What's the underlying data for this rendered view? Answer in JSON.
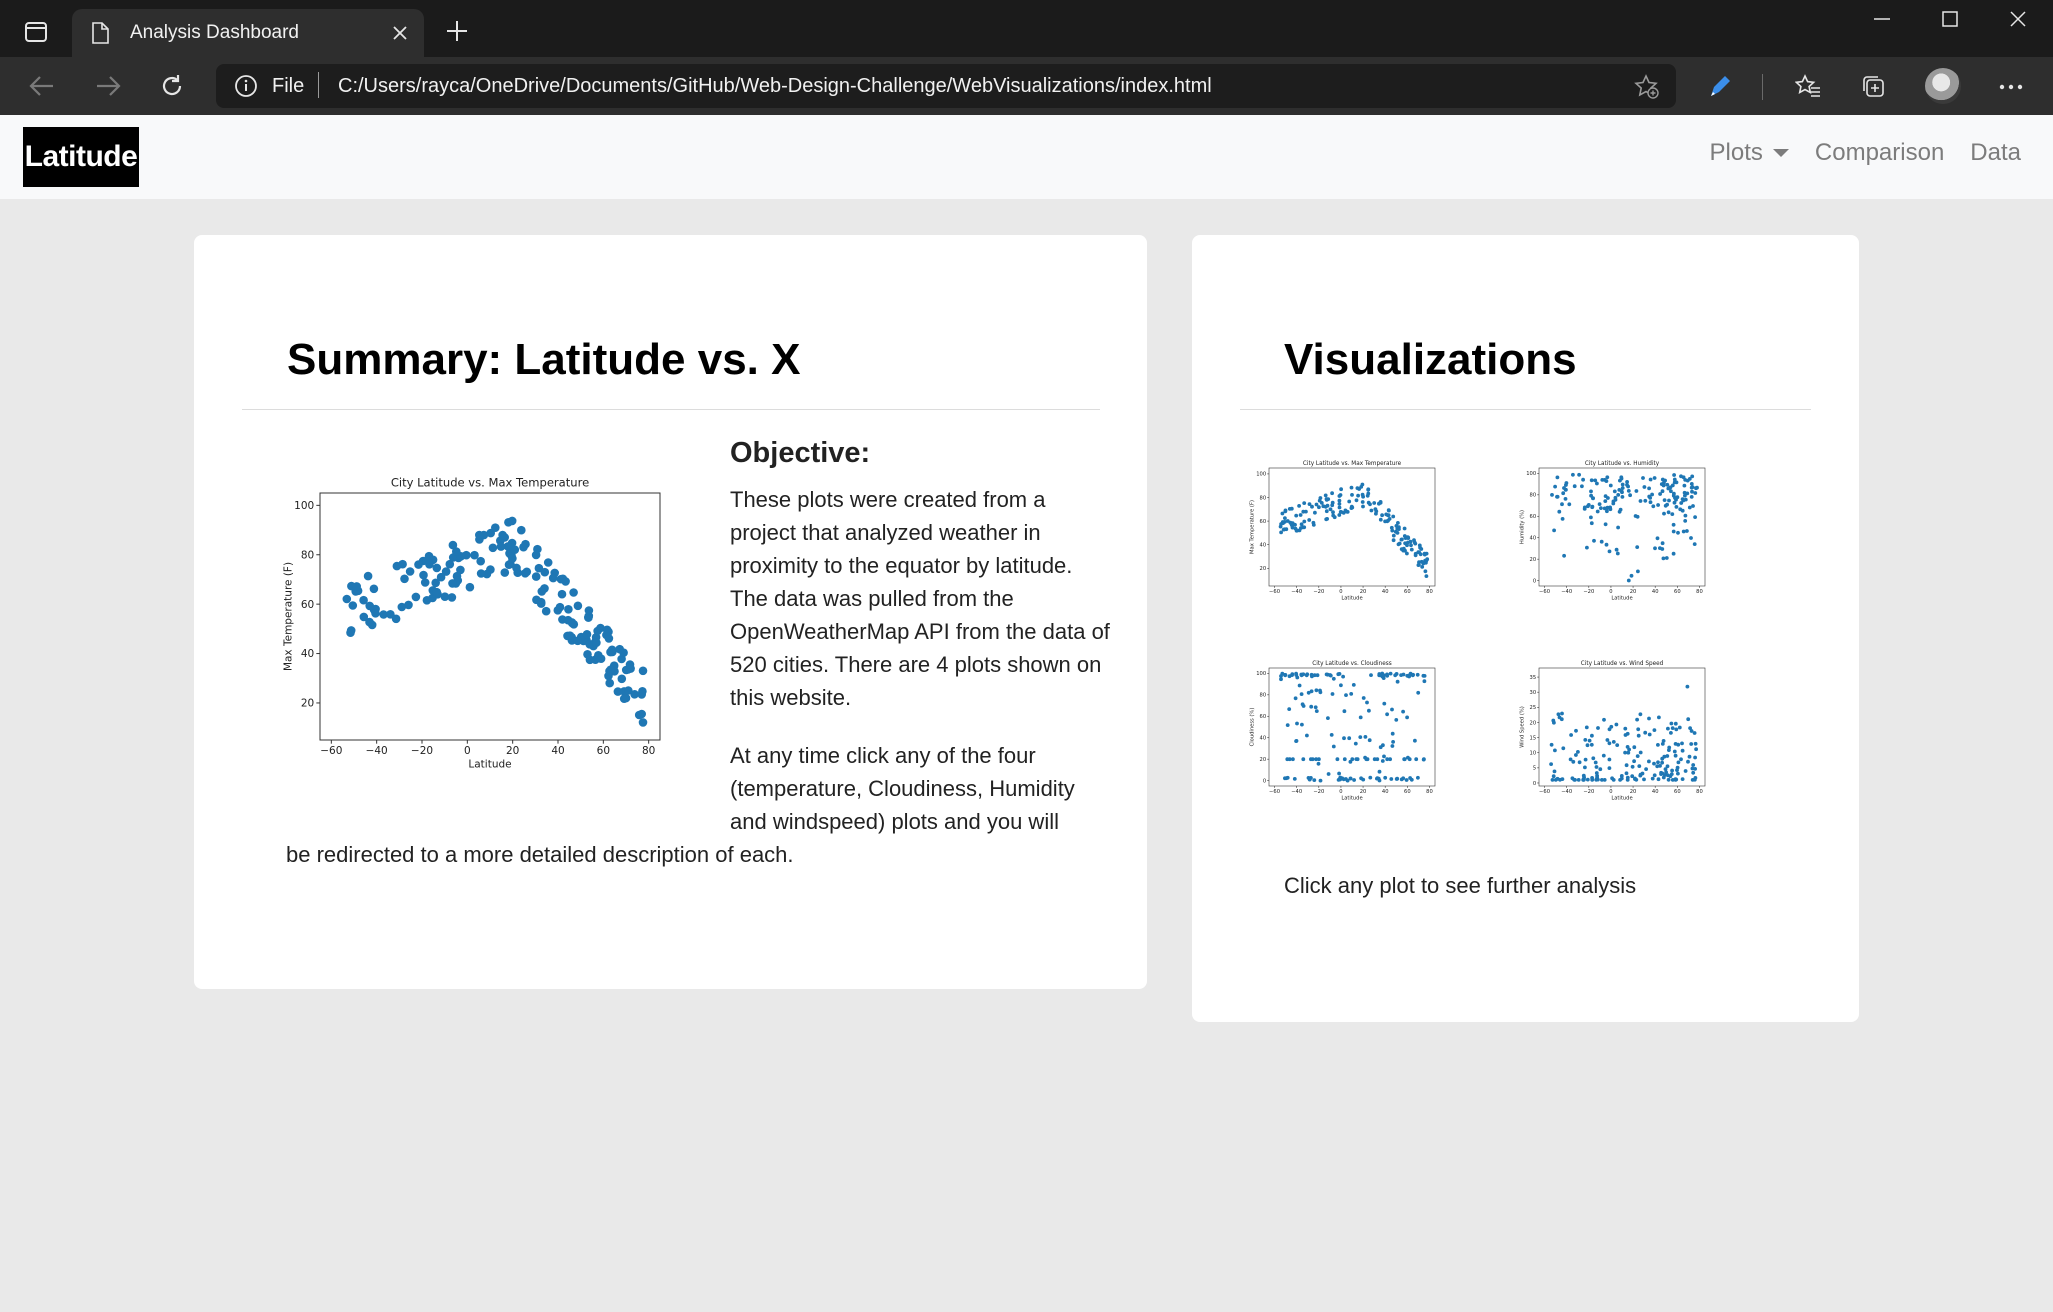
{
  "browser": {
    "tab_title": "Analysis Dashboard",
    "address_scheme": "File",
    "url": "C:/Users/rayca/OneDrive/Documents/GitHub/Web-Design-Challenge/WebVisualizations/index.html"
  },
  "navbar": {
    "brand": "Latitude",
    "links": [
      {
        "label": "Plots",
        "dropdown": true
      },
      {
        "label": "Comparison"
      },
      {
        "label": "Data"
      }
    ]
  },
  "summary": {
    "title": "Summary: Latitude vs. X",
    "objective_title": "Objective:",
    "paragraph1": "These plots were created from a project that analyzed weather in proximity to the equator by latitude. The data was pulled from the OpenWeatherMap API from the data of 520 cities. There are 4 plots shown on this website.",
    "paragraph2_wrapped": "At any time click any of the four (temperature, Cloudiness, Humidity and windspeed) plots and you will",
    "paragraph2_tail": "be redirected to a more detailed description of each."
  },
  "visualizations": {
    "title": "Visualizations",
    "note": "Click any plot to see further analysis"
  },
  "chart_data": [
    {
      "id": "main-temp",
      "type": "scatter",
      "title": "City Latitude vs. Max Temperature",
      "xlabel": "Latitude",
      "ylabel": "Max Temperature (F)",
      "xlim": [
        -65,
        85
      ],
      "ylim": [
        5,
        105
      ],
      "xticks": [
        "−60",
        "−40",
        "−20",
        "0",
        "20",
        "40",
        "60",
        "80"
      ],
      "xtick_values": [
        -60,
        -40,
        -20,
        0,
        20,
        40,
        60,
        80
      ],
      "yticks": [
        "20",
        "40",
        "60",
        "80",
        "100"
      ],
      "ytick_values": [
        20,
        40,
        60,
        80,
        100
      ],
      "pattern": "temp",
      "color": "#1f77b4"
    },
    {
      "id": "thumb-temp",
      "type": "scatter",
      "title": "City Latitude vs. Max Temperature",
      "xlabel": "Latitude",
      "ylabel": "Max Temperature (F)",
      "xlim": [
        -65,
        85
      ],
      "ylim": [
        5,
        105
      ],
      "xticks": [
        "−60",
        "−40",
        "−20",
        "0",
        "20",
        "40",
        "60",
        "80"
      ],
      "xtick_values": [
        -60,
        -40,
        -20,
        0,
        20,
        40,
        60,
        80
      ],
      "yticks": [
        "20",
        "40",
        "60",
        "80",
        "100"
      ],
      "ytick_values": [
        20,
        40,
        60,
        80,
        100
      ],
      "pattern": "temp",
      "color": "#1f77b4"
    },
    {
      "id": "thumb-humidity",
      "type": "scatter",
      "title": "City Latitude vs. Humidity",
      "xlabel": "Latitude",
      "ylabel": "Humidity (%)",
      "xlim": [
        -65,
        85
      ],
      "ylim": [
        -5,
        105
      ],
      "xticks": [
        "−60",
        "−40",
        "−20",
        "0",
        "20",
        "40",
        "60",
        "80"
      ],
      "xtick_values": [
        -60,
        -40,
        -20,
        0,
        20,
        40,
        60,
        80
      ],
      "yticks": [
        "0",
        "20",
        "40",
        "60",
        "80",
        "100"
      ],
      "ytick_values": [
        0,
        20,
        40,
        60,
        80,
        100
      ],
      "pattern": "humidity",
      "color": "#1f77b4"
    },
    {
      "id": "thumb-cloud",
      "type": "scatter",
      "title": "City Latitude vs. Cloudiness",
      "xlabel": "Latitude",
      "ylabel": "Cloudiness (%)",
      "xlim": [
        -65,
        85
      ],
      "ylim": [
        -5,
        105
      ],
      "xticks": [
        "−60",
        "−40",
        "−20",
        "0",
        "20",
        "40",
        "60",
        "80"
      ],
      "xtick_values": [
        -60,
        -40,
        -20,
        0,
        20,
        40,
        60,
        80
      ],
      "yticks": [
        "0",
        "20",
        "40",
        "60",
        "80",
        "100"
      ],
      "ytick_values": [
        0,
        20,
        40,
        60,
        80,
        100
      ],
      "pattern": "cloud",
      "color": "#1f77b4"
    },
    {
      "id": "thumb-wind",
      "type": "scatter",
      "title": "City Latitude vs. Wind Speed",
      "xlabel": "Latitude",
      "ylabel": "Wind Speed (%)",
      "xlim": [
        -65,
        85
      ],
      "ylim": [
        -1,
        38
      ],
      "xticks": [
        "−60",
        "−40",
        "−20",
        "0",
        "20",
        "40",
        "60",
        "80"
      ],
      "xtick_values": [
        -60,
        -40,
        -20,
        0,
        20,
        40,
        60,
        80
      ],
      "yticks": [
        "0",
        "5",
        "10",
        "15",
        "20",
        "25",
        "30",
        "35"
      ],
      "ytick_values": [
        0,
        5,
        10,
        15,
        20,
        25,
        30,
        35
      ],
      "pattern": "wind",
      "color": "#1f77b4"
    }
  ]
}
